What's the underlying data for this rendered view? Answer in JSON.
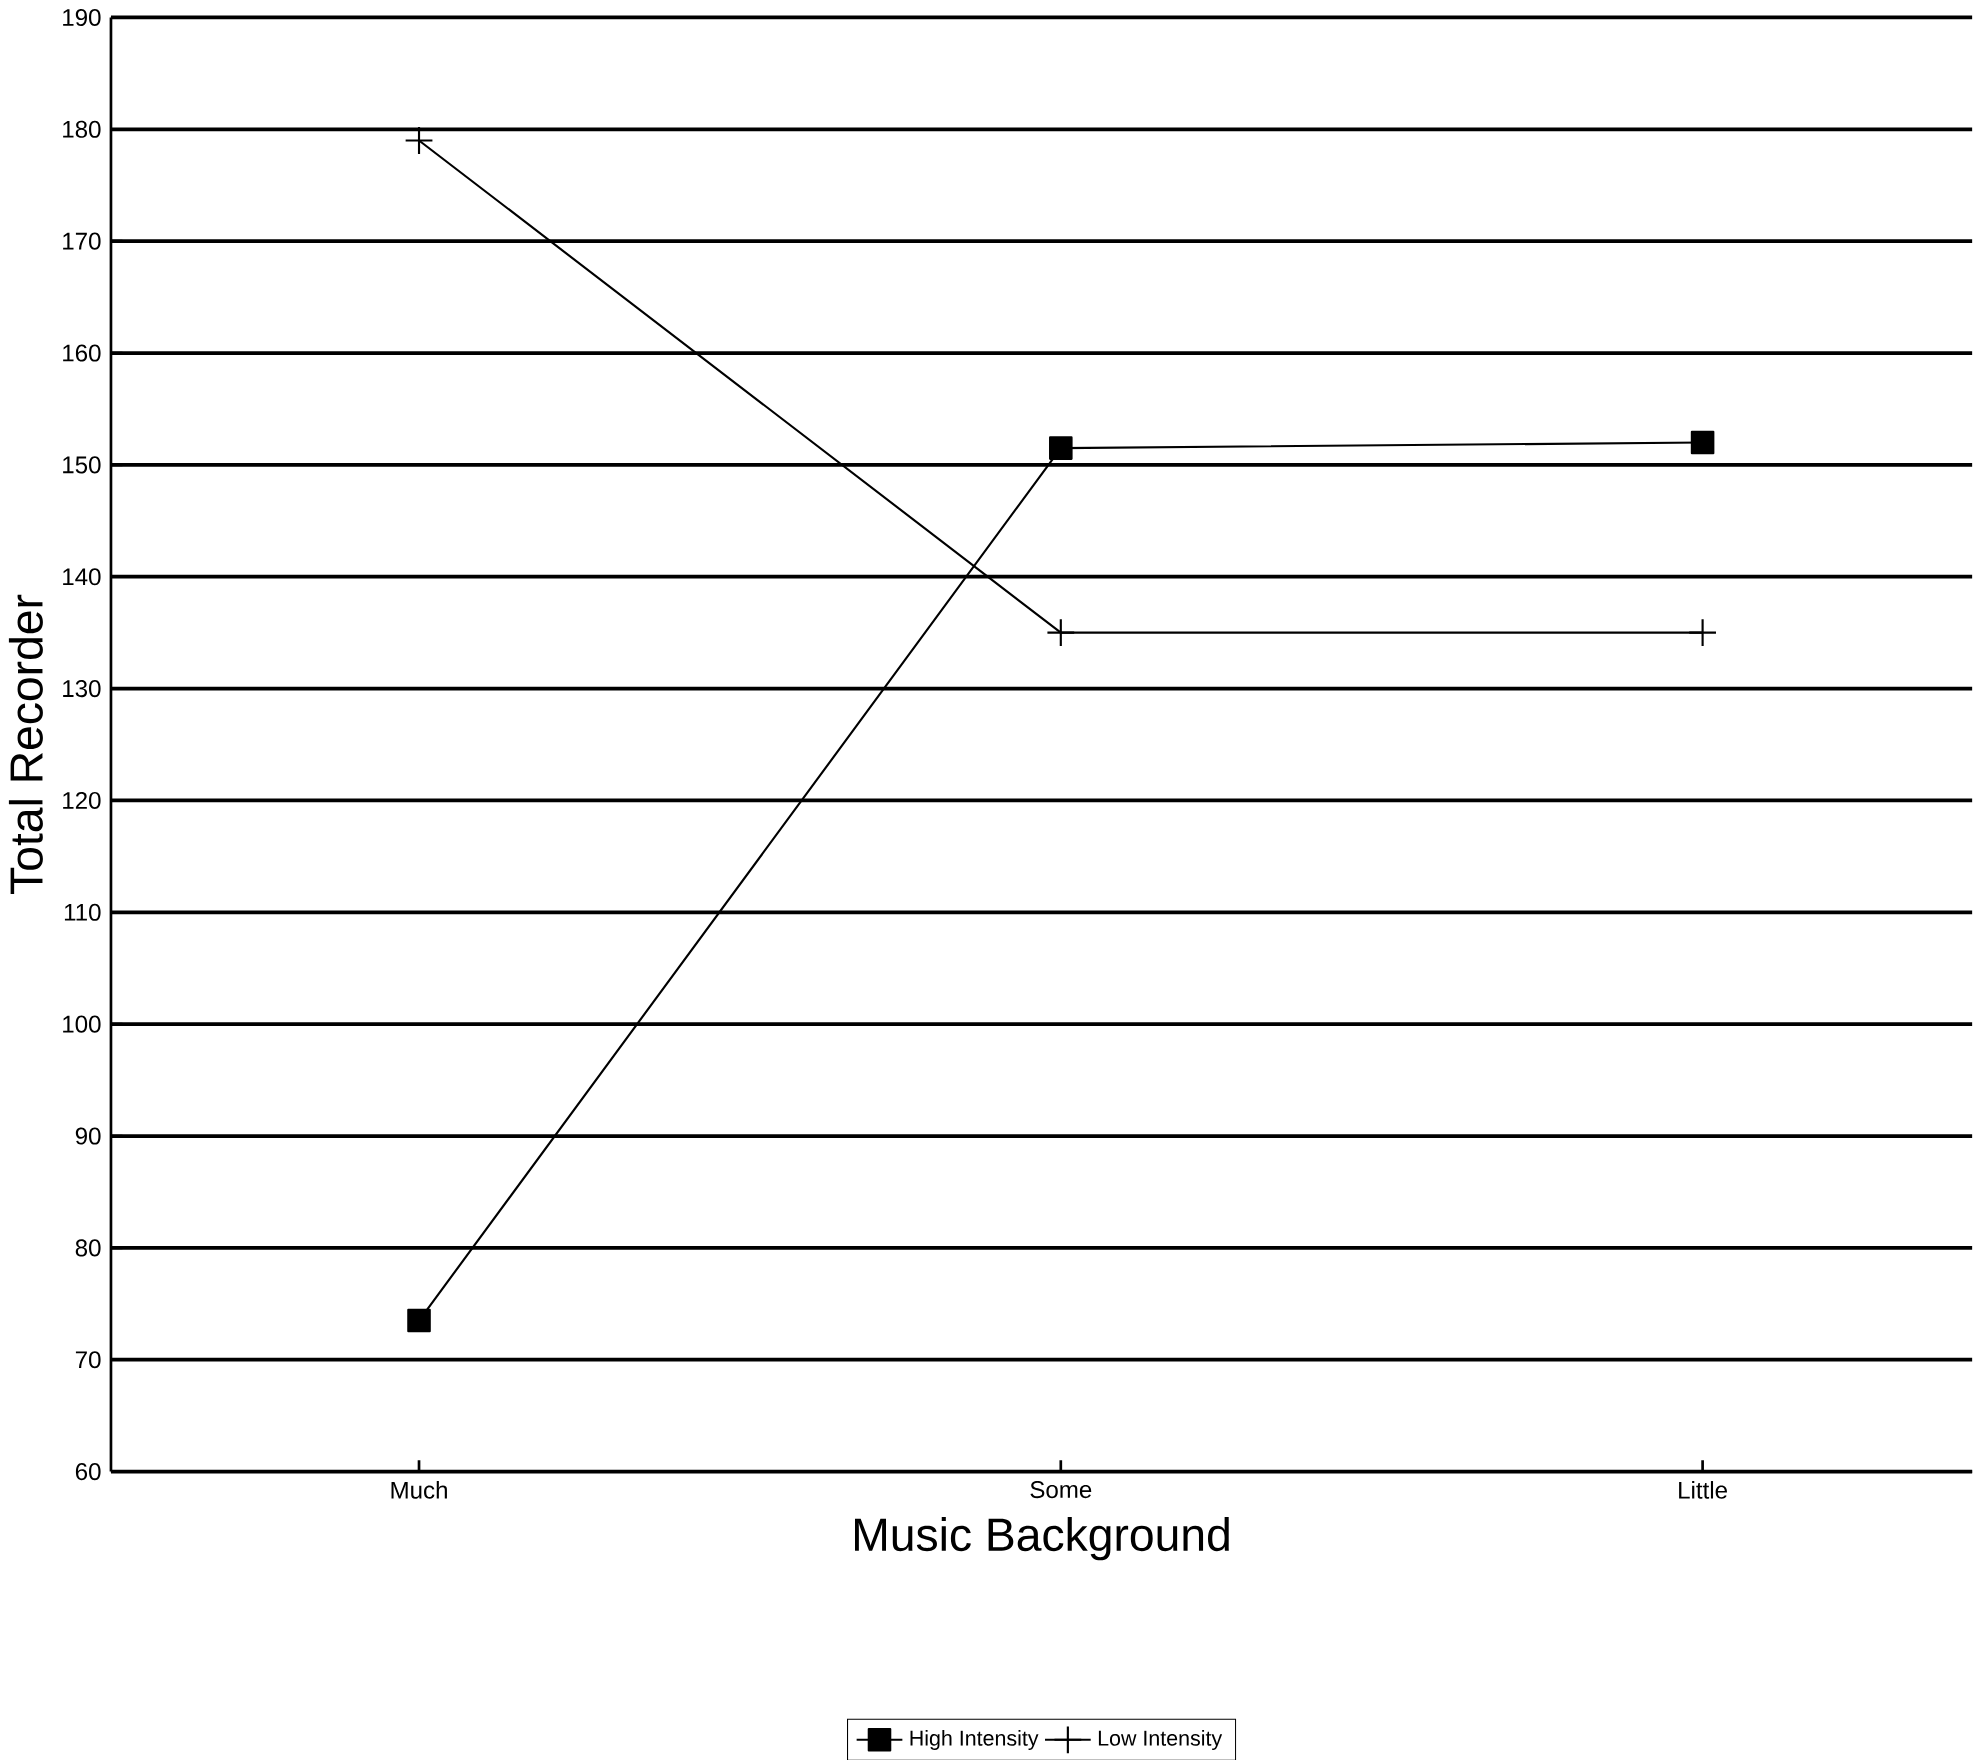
{
  "chart_data": {
    "type": "line",
    "xlabel": "Music Background",
    "ylabel": "Total Recorder",
    "categories": [
      "Much",
      "Some",
      "Little"
    ],
    "series": [
      {
        "name": "High Intensity",
        "color": "#000000",
        "marker": "square",
        "values": [
          73.5,
          151.5,
          152
        ]
      },
      {
        "name": "Low Intensity",
        "color": "#000000",
        "marker": "cross",
        "values": [
          179,
          135,
          135
        ]
      }
    ],
    "ylim": [
      60,
      190
    ],
    "yticks": [
      60,
      70,
      80,
      90,
      100,
      110,
      120,
      130,
      140,
      150,
      160,
      170,
      180,
      190
    ],
    "grid": "y",
    "legend": "bottom"
  }
}
